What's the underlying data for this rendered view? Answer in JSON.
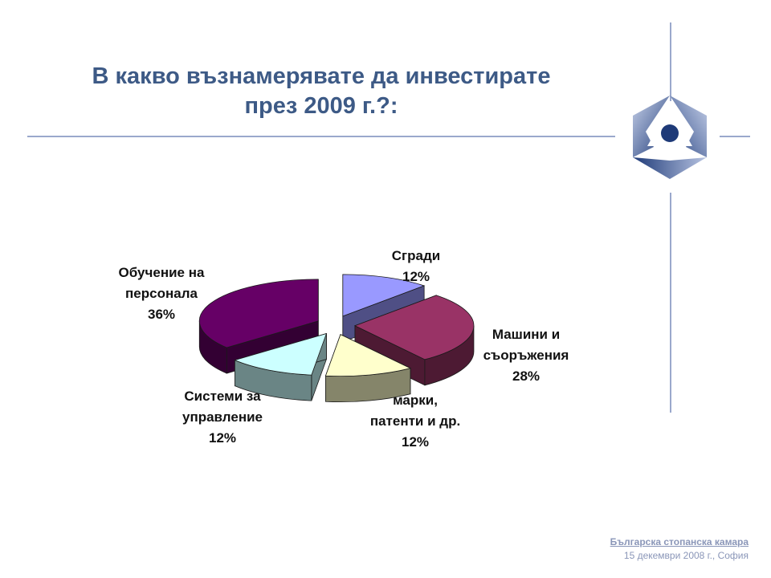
{
  "slide": {
    "title_line1": "В какво възнамерявате да инвестирате",
    "title_line2": "през 2009 г.?:",
    "footer_org": "Българска стопанска камара",
    "footer_date": "15 декември 2008 г., София"
  },
  "chart_data": {
    "type": "pie",
    "title": "В какво възнамерявате да инвестирате през 2009 г.?:",
    "exploded": true,
    "three_d": true,
    "slices": [
      {
        "label_lines": [
          "Сгради"
        ],
        "value_label": "12%",
        "value": 12,
        "color": "#9999ff",
        "side": "#4f4f85"
      },
      {
        "label_lines": [
          "Машини и",
          "съоръжения"
        ],
        "value_label": "28%",
        "value": 28,
        "color": "#993366",
        "side": "#4d1a33"
      },
      {
        "label_lines": [
          "марки,",
          "патенти и др."
        ],
        "value_label": "12%",
        "value": 12,
        "color": "#ffffcc",
        "side": "#85856a"
      },
      {
        "label_lines": [
          "Системи за",
          "управление"
        ],
        "value_label": "12%",
        "value": 12,
        "color": "#ccffff",
        "side": "#6a8585"
      },
      {
        "label_lines": [
          "Обучение на",
          "персонала"
        ],
        "value_label": "36%",
        "value": 36,
        "color": "#660066",
        "side": "#330033"
      }
    ]
  }
}
